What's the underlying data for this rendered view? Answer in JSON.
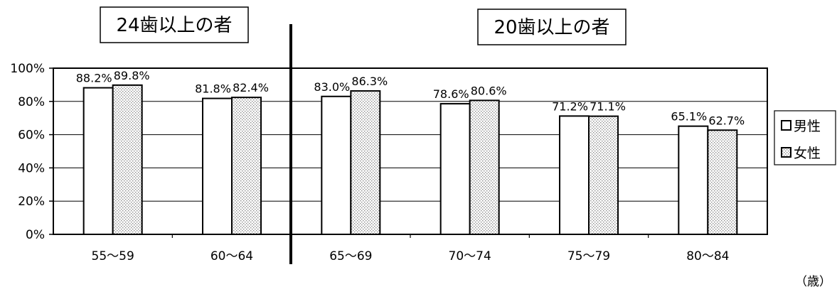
{
  "chart_data": {
    "type": "bar",
    "categories": [
      "55～59",
      "60～64",
      "65～69",
      "70～74",
      "75～79",
      "80～84"
    ],
    "series": [
      {
        "name": "男性",
        "values": [
          88.2,
          81.8,
          83.0,
          78.6,
          71.2,
          65.1
        ],
        "labels": [
          "88.2%",
          "81.8%",
          "83.0%",
          "78.6%",
          "71.2%",
          "65.1%"
        ]
      },
      {
        "name": "女性",
        "values": [
          89.8,
          82.4,
          86.3,
          80.6,
          71.1,
          62.7
        ],
        "labels": [
          "89.8%",
          "82.4%",
          "86.3%",
          "80.6%",
          "71.1%",
          "62.7%"
        ]
      }
    ],
    "yticks": [
      "0%",
      "20%",
      "40%",
      "60%",
      "80%",
      "100%"
    ],
    "ylim": [
      0,
      100
    ],
    "xunit": "（歳）",
    "group_labels": [
      "24歯以上の者",
      "20歯以上の者"
    ],
    "legend_position": "right",
    "grid": true,
    "colors": {
      "male": "#ffffff",
      "female_pattern": "#9a9a9a",
      "axis": "#000000",
      "grid": "#000000"
    }
  }
}
